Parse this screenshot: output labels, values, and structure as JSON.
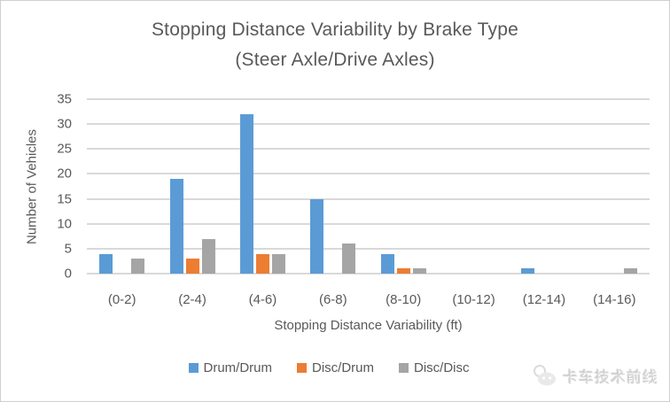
{
  "chart": {
    "title_line1": "Stopping Distance Variability by Brake Type",
    "title_line2": "(Steer Axle/Drive Axles)",
    "xlabel": "Stopping Distance Variability (ft)",
    "ylabel": "Number of Vehicles"
  },
  "chart_data": {
    "type": "bar",
    "title": "Stopping Distance Variability by Brake Type (Steer Axle/Drive Axles)",
    "xlabel": "Stopping Distance Variability (ft)",
    "ylabel": "Number of Vehicles",
    "categories": [
      "(0-2)",
      "(2-4)",
      "(4-6)",
      "(6-8)",
      "(8-10)",
      "(10-12)",
      "(12-14)",
      "(14-16)"
    ],
    "series": [
      {
        "name": "Drum/Drum",
        "color": "#5B9BD5",
        "values": [
          4,
          19,
          32,
          15,
          4,
          0,
          1,
          0
        ]
      },
      {
        "name": "Disc/Drum",
        "color": "#ED7D31",
        "values": [
          0,
          3,
          4,
          0,
          1,
          0,
          0,
          0
        ]
      },
      {
        "name": "Disc/Disc",
        "color": "#A5A5A5",
        "values": [
          3,
          7,
          4,
          6,
          1,
          0,
          0,
          1
        ]
      }
    ],
    "ylim": [
      0,
      35
    ],
    "ytick_step": 5,
    "grid": "horizontal",
    "legend_position": "bottom"
  },
  "colors": {
    "gridline": "#D9D9D9",
    "axis_text": "#595959",
    "border": "#CFCFCF",
    "watermark_text": "#D6D6D6"
  },
  "watermark": {
    "text": "卡车技术前线"
  }
}
